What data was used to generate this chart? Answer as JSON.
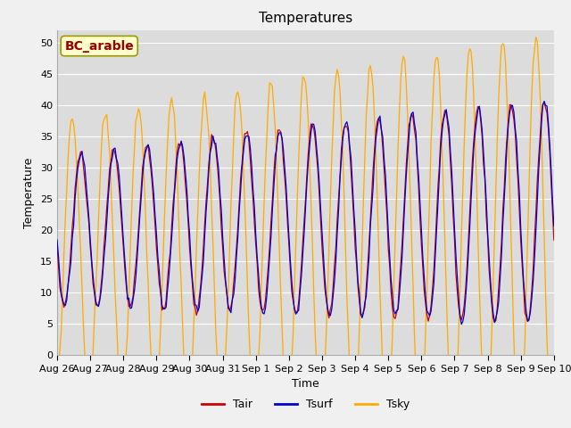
{
  "title": "Temperatures",
  "xlabel": "Time",
  "ylabel": "Temperature",
  "ylim": [
    0,
    52
  ],
  "yticks": [
    0,
    5,
    10,
    15,
    20,
    25,
    30,
    35,
    40,
    45,
    50
  ],
  "legend_labels": [
    "Tair",
    "Tsurf",
    "Tsky"
  ],
  "legend_colors": [
    "#cc0000",
    "#0000cc",
    "#ffaa00"
  ],
  "annotation_text": "BC_arable",
  "annotation_color": "#990000",
  "annotation_bg": "#ffffcc",
  "annotation_edge": "#999900",
  "bg_color": "#dcdcdc",
  "fig_bg_color": "#f0f0f0",
  "grid_color": "#ffffff",
  "title_fontsize": 11,
  "axis_label_fontsize": 9,
  "tick_fontsize": 8,
  "legend_fontsize": 9
}
